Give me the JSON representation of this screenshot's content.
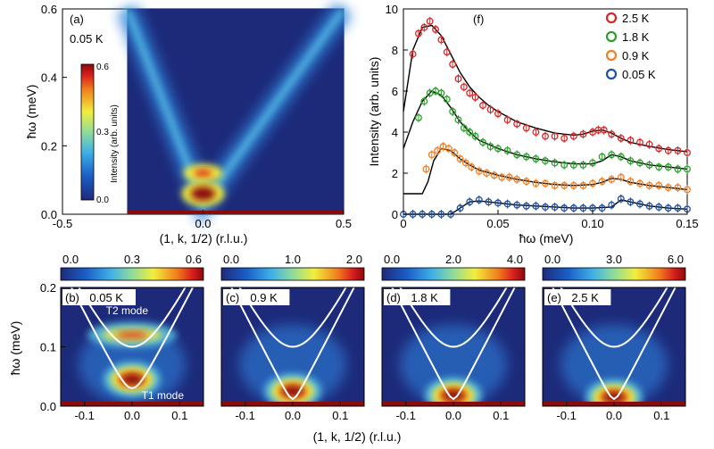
{
  "figure": {
    "xlabel_top": "(1, k, 1/2) (r.l.u.)",
    "xlabel_bottom": "(1, k, 1/2) (r.l.u.)",
    "ylabel_energy": "ħω (meV)"
  },
  "colors": {
    "map_low": "#1d2a7a",
    "map_high": "#8b0a0a",
    "dispersion_line": "#ffffff",
    "fit_line": "#000000"
  },
  "chart_data": [
    {
      "id": "a",
      "type": "heatmap",
      "panel_label": "(a)",
      "temperature": "0.05 K",
      "xlabel": "(1, k, 1/2) (r.l.u.)",
      "ylabel": "ħω (meV)",
      "xlim": [
        -0.5,
        0.5
      ],
      "ylim": [
        0.0,
        0.6
      ],
      "data_extent_x": [
        -0.27,
        0.5
      ],
      "xticks": [
        "-0.5",
        "0.0",
        "0.5"
      ],
      "yticks": [
        "0.0",
        "0.2",
        "0.4",
        "0.6"
      ],
      "colorbar": {
        "label": "Intensity (arb. units)",
        "ticks": [
          "0.0",
          "0.3",
          "0.6"
        ],
        "range": [
          0.0,
          0.6
        ]
      },
      "features": [
        {
          "name": "V-shaped continuum",
          "k_at_top": [
            -0.27,
            0.5
          ],
          "energy_min": 0.03
        },
        {
          "name": "T2 mode intensity spot",
          "k": 0.0,
          "energy": 0.12
        },
        {
          "name": "T1 mode intensity spot",
          "k": 0.0,
          "energy": 0.06
        }
      ]
    },
    {
      "id": "f",
      "type": "scatter",
      "panel_label": "(f)",
      "xlabel": "ħω (meV)",
      "ylabel": "Intensity (arb. units)",
      "xlim": [
        0.0,
        0.15
      ],
      "ylim": [
        0,
        10
      ],
      "xticks": [
        "0",
        "0.05",
        "0.10",
        "0.15"
      ],
      "yticks": [
        "0",
        "2",
        "4",
        "6",
        "8",
        "10"
      ],
      "legend_position": "top-right",
      "series": [
        {
          "name": "2.5 K",
          "color": "#d62728",
          "x": [
            0.005,
            0.008,
            0.011,
            0.014,
            0.017,
            0.02,
            0.023,
            0.026,
            0.029,
            0.032,
            0.035,
            0.038,
            0.042,
            0.046,
            0.05,
            0.055,
            0.06,
            0.065,
            0.07,
            0.075,
            0.08,
            0.085,
            0.09,
            0.095,
            0.1,
            0.103,
            0.106,
            0.11,
            0.115,
            0.12,
            0.125,
            0.13,
            0.135,
            0.14,
            0.145,
            0.15
          ],
          "y": [
            7.8,
            8.8,
            9.1,
            9.4,
            9.0,
            8.5,
            7.9,
            7.3,
            6.6,
            6.2,
            5.9,
            5.7,
            5.3,
            5.1,
            4.9,
            4.6,
            4.4,
            4.2,
            4.0,
            3.8,
            3.8,
            3.7,
            3.8,
            3.9,
            4.0,
            4.1,
            4.1,
            3.9,
            3.7,
            3.6,
            3.5,
            3.4,
            3.2,
            3.1,
            3.1,
            3.0
          ],
          "fit_x": [
            0.0,
            0.005,
            0.01,
            0.015,
            0.02,
            0.025,
            0.03,
            0.035,
            0.04,
            0.045,
            0.05,
            0.06,
            0.07,
            0.08,
            0.09,
            0.095,
            0.1,
            0.105,
            0.11,
            0.115,
            0.12,
            0.13,
            0.14,
            0.15
          ],
          "fit_y": [
            5.0,
            8.0,
            9.1,
            9.2,
            8.7,
            7.8,
            6.9,
            6.2,
            5.7,
            5.3,
            5.0,
            4.5,
            4.2,
            3.95,
            3.85,
            3.9,
            4.05,
            4.1,
            3.95,
            3.7,
            3.5,
            3.3,
            3.15,
            3.05
          ]
        },
        {
          "name": "1.8 K",
          "color": "#2ca02c",
          "x": [
            0.008,
            0.011,
            0.014,
            0.017,
            0.02,
            0.023,
            0.026,
            0.029,
            0.032,
            0.035,
            0.038,
            0.042,
            0.046,
            0.05,
            0.055,
            0.06,
            0.065,
            0.07,
            0.075,
            0.08,
            0.085,
            0.09,
            0.095,
            0.1,
            0.105,
            0.11,
            0.115,
            0.12,
            0.125,
            0.13,
            0.135,
            0.14,
            0.145,
            0.15
          ],
          "y": [
            4.7,
            5.5,
            5.9,
            6.0,
            5.9,
            5.6,
            5.0,
            4.6,
            4.2,
            4.0,
            3.8,
            3.5,
            3.3,
            3.2,
            3.1,
            2.9,
            2.8,
            2.7,
            2.6,
            2.5,
            2.4,
            2.4,
            2.4,
            2.5,
            2.8,
            2.9,
            2.8,
            2.6,
            2.5,
            2.4,
            2.3,
            2.3,
            2.2,
            2.2
          ],
          "fit_x": [
            0.0,
            0.005,
            0.01,
            0.015,
            0.02,
            0.025,
            0.03,
            0.035,
            0.04,
            0.05,
            0.06,
            0.07,
            0.08,
            0.09,
            0.1,
            0.105,
            0.11,
            0.115,
            0.12,
            0.13,
            0.14,
            0.15
          ],
          "fit_y": [
            3.2,
            4.5,
            5.5,
            6.0,
            5.8,
            5.2,
            4.5,
            4.0,
            3.6,
            3.2,
            2.9,
            2.7,
            2.55,
            2.45,
            2.45,
            2.6,
            2.9,
            2.8,
            2.6,
            2.4,
            2.3,
            2.2
          ]
        },
        {
          "name": "0.9 K",
          "color": "#ef7f22",
          "x": [
            0.012,
            0.015,
            0.018,
            0.021,
            0.024,
            0.027,
            0.03,
            0.033,
            0.036,
            0.04,
            0.044,
            0.048,
            0.052,
            0.056,
            0.06,
            0.065,
            0.07,
            0.075,
            0.08,
            0.085,
            0.09,
            0.095,
            0.1,
            0.105,
            0.11,
            0.115,
            0.12,
            0.125,
            0.13,
            0.135,
            0.14,
            0.145,
            0.15
          ],
          "y": [
            2.2,
            2.9,
            3.1,
            3.3,
            3.2,
            3.0,
            2.7,
            2.5,
            2.3,
            2.1,
            2.0,
            1.9,
            1.8,
            1.8,
            1.7,
            1.6,
            1.5,
            1.5,
            1.4,
            1.4,
            1.4,
            1.4,
            1.5,
            1.6,
            1.7,
            1.8,
            1.6,
            1.5,
            1.4,
            1.4,
            1.3,
            1.3,
            1.2
          ],
          "fit_x": [
            0.0,
            0.01,
            0.013,
            0.016,
            0.02,
            0.025,
            0.03,
            0.035,
            0.04,
            0.05,
            0.06,
            0.07,
            0.08,
            0.09,
            0.1,
            0.105,
            0.11,
            0.115,
            0.12,
            0.13,
            0.14,
            0.15
          ],
          "fit_y": [
            1.0,
            1.0,
            1.6,
            2.6,
            3.2,
            3.1,
            2.7,
            2.4,
            2.15,
            1.9,
            1.7,
            1.55,
            1.45,
            1.4,
            1.45,
            1.55,
            1.75,
            1.7,
            1.55,
            1.4,
            1.3,
            1.2
          ]
        },
        {
          "name": "0.05 K",
          "color": "#1f4fa0",
          "x": [
            0.0,
            0.005,
            0.01,
            0.015,
            0.02,
            0.025,
            0.03,
            0.035,
            0.04,
            0.045,
            0.05,
            0.055,
            0.06,
            0.065,
            0.07,
            0.075,
            0.08,
            0.085,
            0.09,
            0.095,
            0.1,
            0.105,
            0.11,
            0.115,
            0.12,
            0.125,
            0.13,
            0.135,
            0.14,
            0.145,
            0.15
          ],
          "y": [
            0.0,
            0.0,
            0.0,
            0.0,
            0.0,
            0.0,
            0.3,
            0.6,
            0.7,
            0.6,
            0.55,
            0.5,
            0.45,
            0.4,
            0.4,
            0.35,
            0.35,
            0.3,
            0.3,
            0.3,
            0.3,
            0.3,
            0.45,
            0.75,
            0.6,
            0.5,
            0.4,
            0.35,
            0.3,
            0.3,
            0.25
          ],
          "fit_x": [
            0.0,
            0.025,
            0.03,
            0.035,
            0.04,
            0.05,
            0.06,
            0.07,
            0.08,
            0.09,
            0.1,
            0.11,
            0.115,
            0.12,
            0.13,
            0.14,
            0.15
          ],
          "fit_y": [
            0.0,
            0.0,
            0.3,
            0.6,
            0.65,
            0.55,
            0.45,
            0.4,
            0.35,
            0.3,
            0.3,
            0.35,
            0.7,
            0.6,
            0.4,
            0.3,
            0.25
          ]
        }
      ]
    },
    {
      "id": "b",
      "type": "heatmap",
      "panel_label": "(b)",
      "temperature": "0.05 K",
      "xlim": [
        -0.15,
        0.15
      ],
      "ylim": [
        0.0,
        0.2
      ],
      "xticks": [
        "-0.1",
        "0.0",
        "0.1"
      ],
      "yticks": [
        "0.0",
        "0.1",
        "0.2"
      ],
      "colorbar": {
        "ticks": [
          "0.0",
          "0.3",
          "0.6"
        ],
        "range": [
          0.0,
          0.6
        ]
      },
      "annotations": [
        "T2 mode",
        "T1 mode"
      ],
      "features": [
        {
          "name": "T2 band",
          "k": 0.0,
          "energy": 0.12,
          "strength": 0.75
        },
        {
          "name": "T1 band",
          "k": 0.0,
          "energy": 0.045,
          "strength": 1.0
        }
      ],
      "dispersion": [
        {
          "name": "T1",
          "min_energy": 0.03
        },
        {
          "name": "T2",
          "min_energy": 0.1
        }
      ]
    },
    {
      "id": "c",
      "type": "heatmap",
      "panel_label": "(c)",
      "temperature": "0.9 K",
      "xlim": [
        -0.15,
        0.15
      ],
      "ylim": [
        0.0,
        0.2
      ],
      "xticks": [
        "-0.1",
        "0.0",
        "0.1"
      ],
      "colorbar": {
        "ticks": [
          "0.0",
          "1.0",
          "2.0"
        ],
        "range": [
          0.0,
          2.0
        ]
      },
      "features": [
        {
          "name": "low-energy spot",
          "k": 0.0,
          "energy": 0.025,
          "strength": 0.9
        }
      ],
      "dispersion": [
        {
          "name": "T1",
          "min_energy": 0.012
        },
        {
          "name": "T2",
          "min_energy": 0.1
        }
      ]
    },
    {
      "id": "d",
      "type": "heatmap",
      "panel_label": "(d)",
      "temperature": "1.8 K",
      "xlim": [
        -0.15,
        0.15
      ],
      "ylim": [
        0.0,
        0.2
      ],
      "xticks": [
        "-0.1",
        "0.0",
        "0.1"
      ],
      "colorbar": {
        "ticks": [
          "0.0",
          "2.0",
          "4.0"
        ],
        "range": [
          0.0,
          4.0
        ]
      },
      "features": [
        {
          "name": "low-energy spot",
          "k": 0.0,
          "energy": 0.018,
          "strength": 0.95
        }
      ],
      "dispersion": [
        {
          "name": "T1",
          "min_energy": 0.012
        },
        {
          "name": "T2",
          "min_energy": 0.1
        }
      ]
    },
    {
      "id": "e",
      "type": "heatmap",
      "panel_label": "(e)",
      "temperature": "2.5 K",
      "xlim": [
        -0.15,
        0.15
      ],
      "ylim": [
        0.0,
        0.2
      ],
      "xticks": [
        "-0.1",
        "0.0",
        "0.1"
      ],
      "colorbar": {
        "ticks": [
          "0.0",
          "3.0",
          "6.0"
        ],
        "range": [
          0.0,
          6.0
        ]
      },
      "features": [
        {
          "name": "low-energy spot",
          "k": 0.0,
          "energy": 0.015,
          "strength": 1.0
        }
      ],
      "dispersion": [
        {
          "name": "T1",
          "min_energy": 0.012
        },
        {
          "name": "T2",
          "min_energy": 0.1
        }
      ]
    }
  ]
}
